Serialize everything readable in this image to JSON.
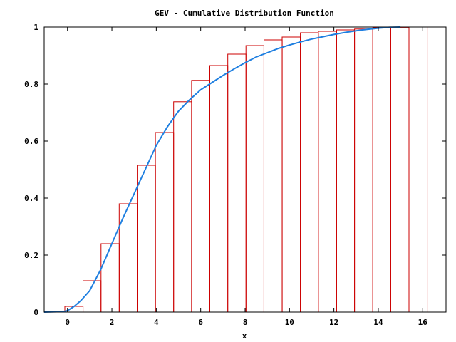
{
  "chart_data": {
    "type": "bar",
    "title": "GEV - Cumulative Distribution Function",
    "xlabel": "x",
    "ylabel": "",
    "xlim": [
      -1.05,
      17.05
    ],
    "ylim": [
      0,
      1
    ],
    "x_ticks": [
      "0",
      "2",
      "4",
      "6",
      "8",
      "10",
      "12",
      "14",
      "16"
    ],
    "y_ticks": [
      "0",
      "0.2",
      "0.4",
      "0.6",
      "0.8",
      "1"
    ],
    "grid": false,
    "legend": "none",
    "histogram": {
      "name": "",
      "color": "#cc0000",
      "bins": [
        {
          "x0": -0.12,
          "x1": 0.7,
          "value": 0.02
        },
        {
          "x0": 0.7,
          "x1": 1.51,
          "value": 0.11
        },
        {
          "x0": 1.51,
          "x1": 2.33,
          "value": 0.24
        },
        {
          "x0": 2.33,
          "x1": 3.14,
          "value": 0.38
        },
        {
          "x0": 3.14,
          "x1": 3.96,
          "value": 0.515
        },
        {
          "x0": 3.96,
          "x1": 4.78,
          "value": 0.63
        },
        {
          "x0": 4.78,
          "x1": 5.59,
          "value": 0.738
        },
        {
          "x0": 5.59,
          "x1": 6.41,
          "value": 0.813
        },
        {
          "x0": 6.41,
          "x1": 7.22,
          "value": 0.865
        },
        {
          "x0": 7.22,
          "x1": 8.04,
          "value": 0.905
        },
        {
          "x0": 8.04,
          "x1": 8.85,
          "value": 0.935
        },
        {
          "x0": 8.85,
          "x1": 9.67,
          "value": 0.955
        },
        {
          "x0": 9.67,
          "x1": 10.49,
          "value": 0.965
        },
        {
          "x0": 10.49,
          "x1": 11.3,
          "value": 0.98
        },
        {
          "x0": 11.3,
          "x1": 12.12,
          "value": 0.985
        },
        {
          "x0": 12.12,
          "x1": 12.93,
          "value": 0.99
        },
        {
          "x0": 12.93,
          "x1": 13.75,
          "value": 0.993
        },
        {
          "x0": 13.75,
          "x1": 14.56,
          "value": 0.998
        },
        {
          "x0": 14.56,
          "x1": 15.38,
          "value": 0.999
        },
        {
          "x0": 15.38,
          "x1": 16.2,
          "value": 1.0
        }
      ]
    },
    "cdf_line": {
      "name": "",
      "color": "#1f7fe0",
      "points": [
        [
          -1.05,
          0
        ],
        [
          -0.2,
          0.002
        ],
        [
          0.0,
          0.005
        ],
        [
          0.3,
          0.02
        ],
        [
          0.6,
          0.04
        ],
        [
          1.0,
          0.075
        ],
        [
          1.5,
          0.15
        ],
        [
          2.0,
          0.24
        ],
        [
          2.5,
          0.33
        ],
        [
          3.0,
          0.415
        ],
        [
          3.5,
          0.5
        ],
        [
          4.0,
          0.585
        ],
        [
          4.5,
          0.65
        ],
        [
          5.0,
          0.705
        ],
        [
          5.5,
          0.745
        ],
        [
          6.0,
          0.78
        ],
        [
          6.5,
          0.805
        ],
        [
          7.0,
          0.83
        ],
        [
          7.5,
          0.853
        ],
        [
          8.0,
          0.875
        ],
        [
          8.5,
          0.895
        ],
        [
          9.0,
          0.91
        ],
        [
          9.5,
          0.925
        ],
        [
          10.0,
          0.937
        ],
        [
          10.5,
          0.948
        ],
        [
          11.0,
          0.958
        ],
        [
          11.5,
          0.966
        ],
        [
          12.0,
          0.974
        ],
        [
          12.5,
          0.981
        ],
        [
          13.0,
          0.987
        ],
        [
          13.5,
          0.992
        ],
        [
          14.0,
          0.996
        ],
        [
          14.5,
          0.999
        ],
        [
          15.0,
          1.0
        ]
      ]
    }
  }
}
